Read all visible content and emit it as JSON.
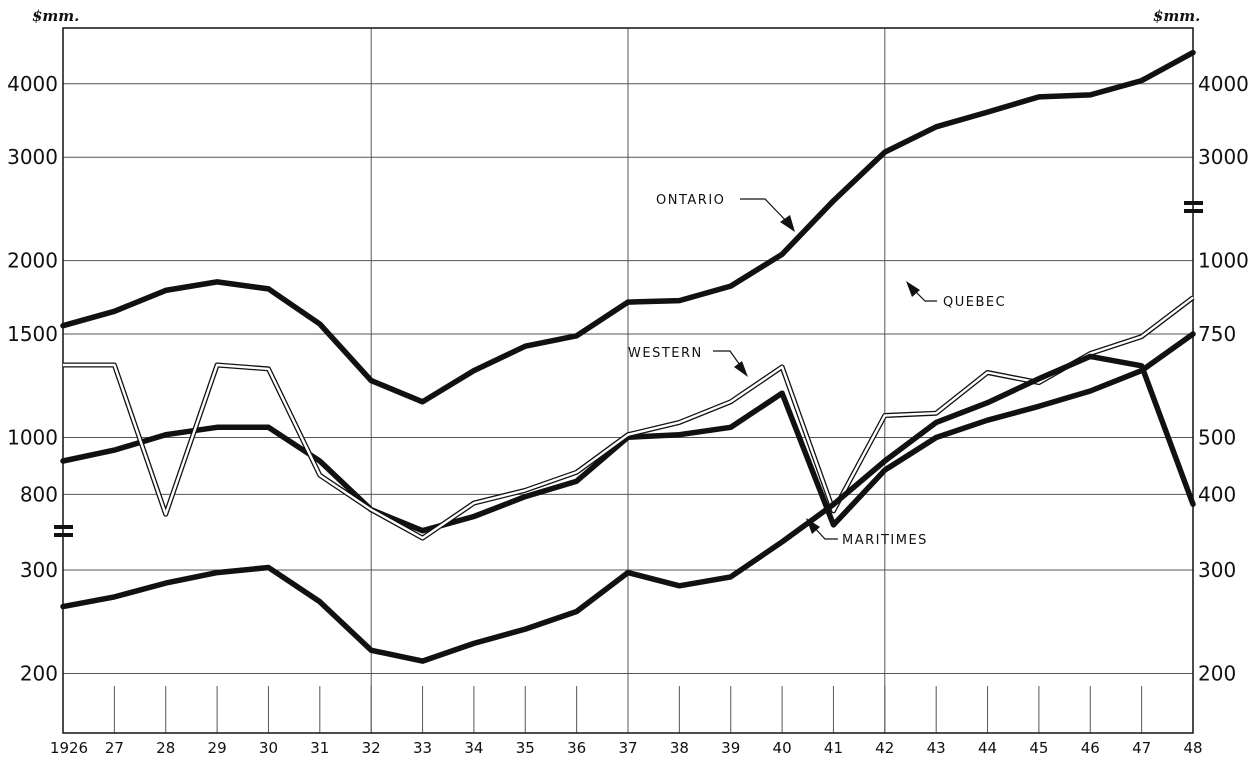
{
  "chart_data": {
    "type": "line",
    "title": "",
    "xlabel": "",
    "ylabel": "",
    "left_unit": "$mm.",
    "right_unit": "$mm.",
    "scale": "log",
    "grid": true,
    "x": [
      1926,
      1927,
      1928,
      1929,
      1930,
      1931,
      1932,
      1933,
      1934,
      1935,
      1936,
      1937,
      1938,
      1939,
      1940,
      1941,
      1942,
      1943,
      1944,
      1945,
      1946,
      1947,
      1948
    ],
    "x_tick_labels": [
      "1926",
      "27",
      "28",
      "29",
      "30",
      "31",
      "32",
      "33",
      "34",
      "35",
      "36",
      "37",
      "38",
      "39",
      "40",
      "41",
      "42",
      "43",
      "44",
      "45",
      "46",
      "47",
      "48"
    ],
    "left_axis_ticks": [
      "4000",
      "3000",
      "2000",
      "1500",
      "1000",
      "800",
      "300",
      "200"
    ],
    "right_axis_ticks": [
      "4000",
      "3000",
      "1000",
      "750",
      "500",
      "400",
      "300",
      "200"
    ],
    "series": [
      {
        "name": "ONTARIO",
        "style": "thick",
        "values": [
          1550,
          1640,
          1780,
          1840,
          1790,
          1560,
          1250,
          1150,
          1300,
          1430,
          1490,
          1700,
          1710,
          1810,
          2050,
          2530,
          3060,
          3380,
          3580,
          3800,
          3830,
          4050,
          4520
        ]
      },
      {
        "name": "QUEBEC",
        "style": "thick",
        "values": [
          460,
          480,
          510,
          525,
          525,
          460,
          380,
          350,
          370,
          400,
          425,
          505,
          510,
          525,
          600,
          710,
          880,
          1000,
          1070,
          1130,
          1200,
          1300,
          1500
        ]
      },
      {
        "name": "WESTERN",
        "style": "double",
        "values": [
          670,
          670,
          740,
          670,
          660,
          435,
          380,
          340,
          390,
          410,
          440,
          510,
          535,
          580,
          665,
          750,
          1090,
          1100,
          1290,
          1240,
          1390,
          1485,
          1730
        ]
      },
      {
        "name": "MARITIMES",
        "style": "thick",
        "values": [
          260,
          270,
          285,
          297,
          303,
          265,
          219,
          210,
          225,
          238,
          255,
          297,
          282,
          292,
          335,
          388,
          460,
          535,
          578,
          635,
          693,
          668,
          770
        ]
      }
    ]
  },
  "colors": {
    "line": "#111111",
    "grid": "#444444",
    "background": "#ffffff"
  }
}
